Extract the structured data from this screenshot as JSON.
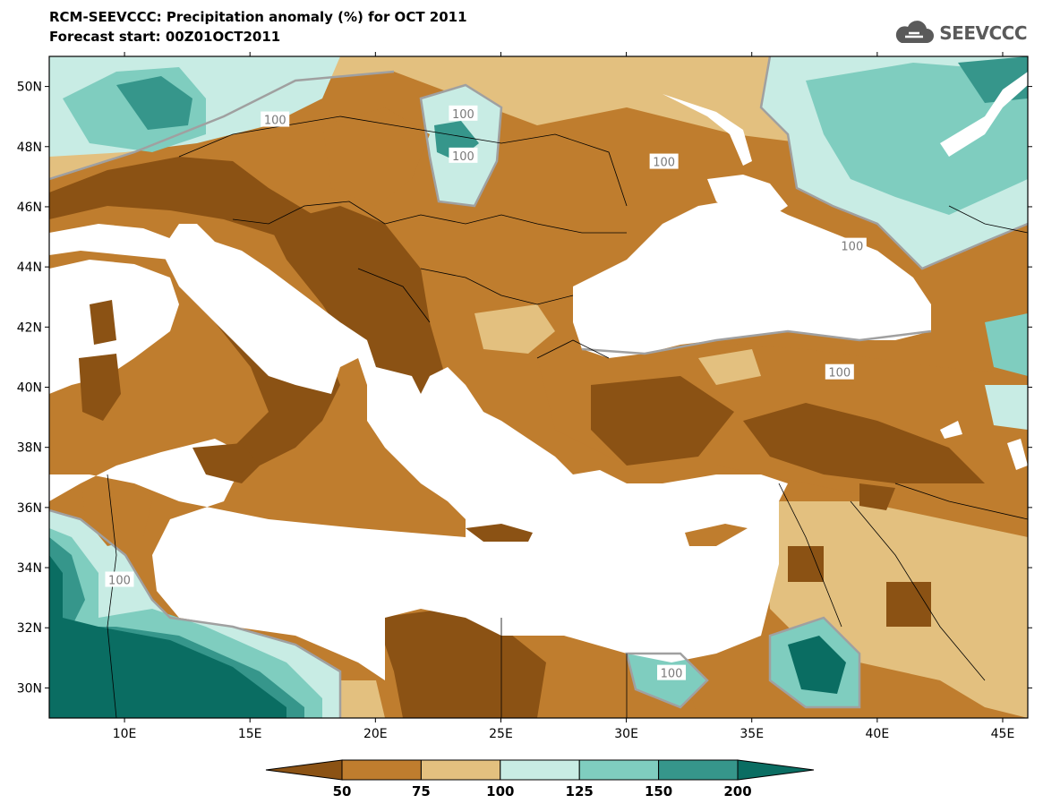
{
  "header": {
    "title": "RCM-SEEVCCC: Precipitation anomaly (%) for OCT 2011",
    "subtitle": "Forecast start: 00Z01OCT2011",
    "logo_text": "SEEVCCC",
    "logo_icon": "cloud-icon"
  },
  "map": {
    "lon_range": [
      7,
      46
    ],
    "lat_range": [
      29,
      51
    ],
    "lon_ticks": [
      "10E",
      "15E",
      "20E",
      "25E",
      "30E",
      "35E",
      "40E",
      "45E"
    ],
    "lat_ticks": [
      "50N",
      "48N",
      "46N",
      "44N",
      "42N",
      "40N",
      "38N",
      "36N",
      "34N",
      "32N",
      "30N"
    ],
    "contour_labels": [
      "100",
      "100",
      "100",
      "100",
      "100",
      "100",
      "100",
      "100"
    ],
    "sea_color": "#ffffff"
  },
  "colorbar": {
    "levels": [
      "50",
      "75",
      "100",
      "125",
      "150",
      "200"
    ],
    "colors": [
      "#8b5214",
      "#bf7d2e",
      "#e3c07f",
      "#c8ece4",
      "#7fcdbf",
      "#36968b",
      "#0a6d62"
    ]
  },
  "palette": {
    "dry_strong": "#8b5214",
    "dry": "#bf7d2e",
    "dry_light": "#e3c07f",
    "wet_light": "#c8ece4",
    "wet": "#7fcdbf",
    "wet_more": "#36968b",
    "wet_strong": "#0a6d62",
    "contour_gray": "#a0a0a0"
  }
}
